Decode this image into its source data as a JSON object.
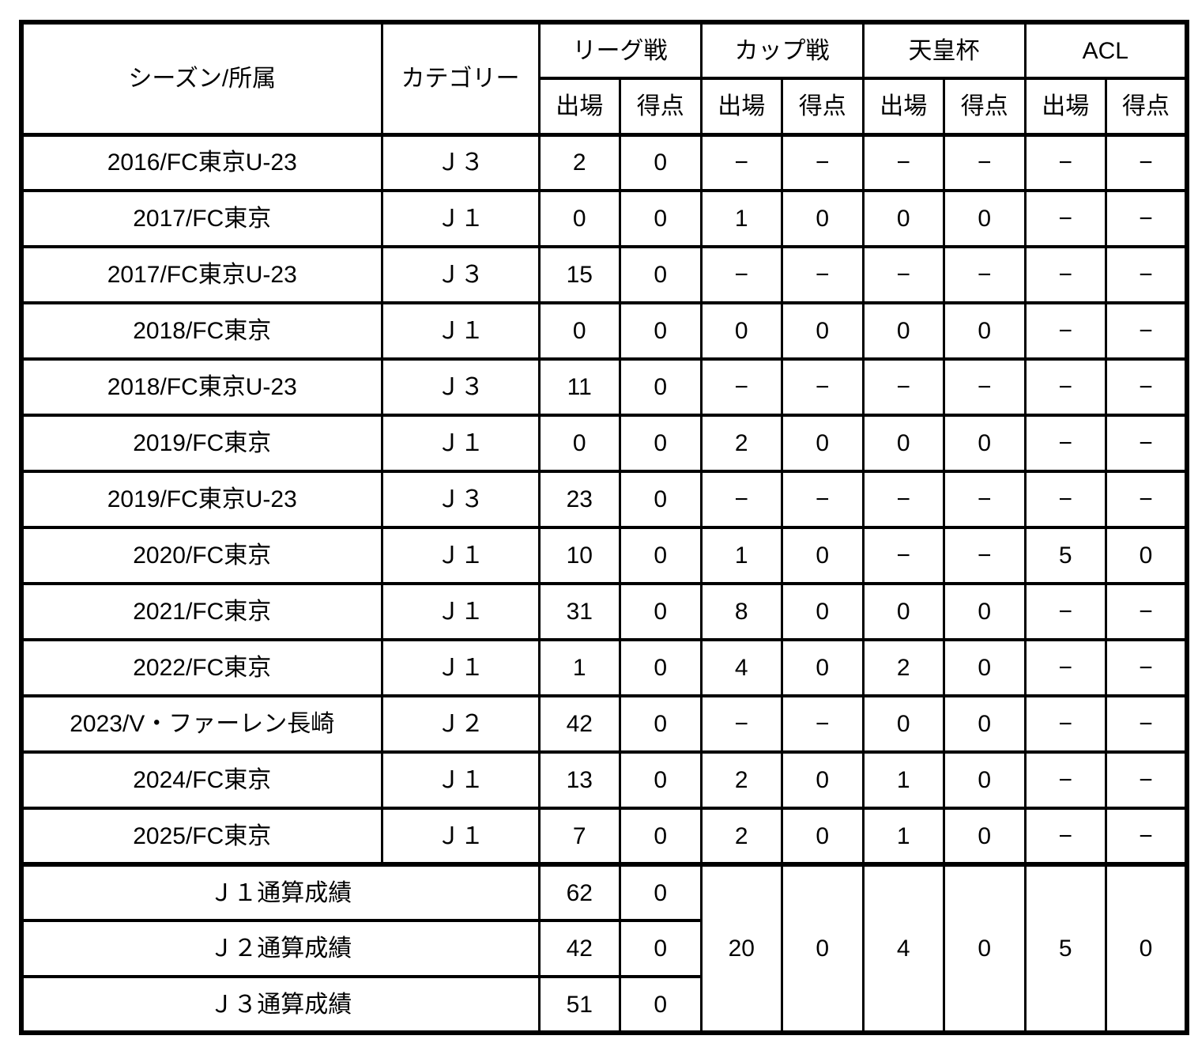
{
  "table": {
    "header": {
      "season_col": "シーズン/所属",
      "category_col": "カテゴリー",
      "groups": [
        {
          "id": "league",
          "label": "リーグ戦"
        },
        {
          "id": "cup",
          "label": "カップ戦"
        },
        {
          "id": "emperor",
          "label": "天皇杯"
        },
        {
          "id": "acl",
          "label": "ACL"
        }
      ],
      "sub_appearances": "出場",
      "sub_goals": "得点"
    },
    "rows": [
      {
        "season": "2016/FC東京U-23",
        "category": "Ｊ３",
        "stats": [
          "2",
          "0",
          "−",
          "−",
          "−",
          "−",
          "−",
          "−"
        ]
      },
      {
        "season": "2017/FC東京",
        "category": "Ｊ１",
        "stats": [
          "0",
          "0",
          "1",
          "0",
          "0",
          "0",
          "−",
          "−"
        ]
      },
      {
        "season": "2017/FC東京U-23",
        "category": "Ｊ３",
        "stats": [
          "15",
          "0",
          "−",
          "−",
          "−",
          "−",
          "−",
          "−"
        ]
      },
      {
        "season": "2018/FC東京",
        "category": "Ｊ１",
        "stats": [
          "0",
          "0",
          "0",
          "0",
          "0",
          "0",
          "−",
          "−"
        ]
      },
      {
        "season": "2018/FC東京U-23",
        "category": "Ｊ３",
        "stats": [
          "11",
          "0",
          "−",
          "−",
          "−",
          "−",
          "−",
          "−"
        ]
      },
      {
        "season": "2019/FC東京",
        "category": "Ｊ１",
        "stats": [
          "0",
          "0",
          "2",
          "0",
          "0",
          "0",
          "−",
          "−"
        ]
      },
      {
        "season": "2019/FC東京U-23",
        "category": "Ｊ３",
        "stats": [
          "23",
          "0",
          "−",
          "−",
          "−",
          "−",
          "−",
          "−"
        ]
      },
      {
        "season": "2020/FC東京",
        "category": "Ｊ１",
        "stats": [
          "10",
          "0",
          "1",
          "0",
          "−",
          "−",
          "5",
          "0"
        ]
      },
      {
        "season": "2021/FC東京",
        "category": "Ｊ１",
        "stats": [
          "31",
          "0",
          "8",
          "0",
          "0",
          "0",
          "−",
          "−"
        ]
      },
      {
        "season": "2022/FC東京",
        "category": "Ｊ１",
        "stats": [
          "1",
          "0",
          "4",
          "0",
          "2",
          "0",
          "−",
          "−"
        ]
      },
      {
        "season": "2023/V・ファーレン長崎",
        "category": "Ｊ２",
        "stats": [
          "42",
          "0",
          "−",
          "−",
          "0",
          "0",
          "−",
          "−"
        ]
      },
      {
        "season": "2024/FC東京",
        "category": "Ｊ１",
        "stats": [
          "13",
          "0",
          "2",
          "0",
          "1",
          "0",
          "−",
          "−"
        ]
      },
      {
        "season": "2025/FC東京",
        "category": "Ｊ１",
        "stats": [
          "7",
          "0",
          "2",
          "0",
          "1",
          "0",
          "−",
          "−"
        ]
      }
    ],
    "totals": {
      "rows": [
        {
          "label": "Ｊ１通算成績",
          "appearances": "62",
          "goals": "0"
        },
        {
          "label": "Ｊ２通算成績",
          "appearances": "42",
          "goals": "0"
        },
        {
          "label": "Ｊ３通算成績",
          "appearances": "51",
          "goals": "0"
        }
      ],
      "cup": {
        "appearances": "20",
        "goals": "0"
      },
      "emperors_cup": {
        "appearances": "4",
        "goals": "0"
      },
      "acl": {
        "appearances": "5",
        "goals": "0"
      }
    },
    "colors": {
      "border": "#000000",
      "background": "#ffffff",
      "text": "#000000"
    }
  }
}
